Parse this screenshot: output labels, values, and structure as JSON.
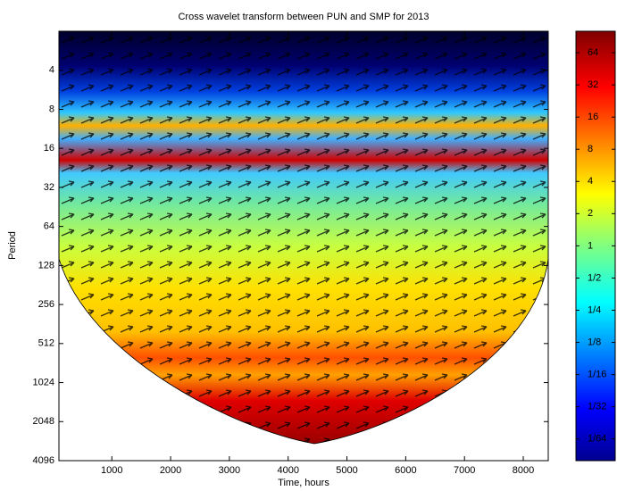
{
  "chart_data": {
    "type": "heatmap",
    "title": "Cross wavelet transform between PUN and SMP for 2013",
    "x_label": "Time, hours",
    "y_label": "Period",
    "xlim": [
      100,
      8425
    ],
    "xticks": [
      1000,
      2000,
      3000,
      4000,
      5000,
      6000,
      7000,
      8000
    ],
    "ylim": [
      2,
      4096
    ],
    "yticks": [
      4,
      8,
      16,
      32,
      64,
      128,
      256,
      512,
      1024,
      2048,
      4096
    ],
    "y_scale": "log2",
    "y_reversed": true,
    "colorbar": {
      "clim": [
        0.0098,
        101.6
      ],
      "scale": "log2",
      "ticks": [
        64,
        32,
        16,
        8,
        4,
        2,
        1,
        {
          "value": 0.5,
          "label": "1/2"
        },
        {
          "value": 0.25,
          "label": "1/4"
        },
        {
          "value": 0.125,
          "label": "1/8"
        },
        {
          "value": 0.0625,
          "label": "1/16"
        },
        {
          "value": 0.03125,
          "label": "1/32"
        },
        {
          "value": 0.015625,
          "label": "1/64"
        }
      ]
    }
  }
}
